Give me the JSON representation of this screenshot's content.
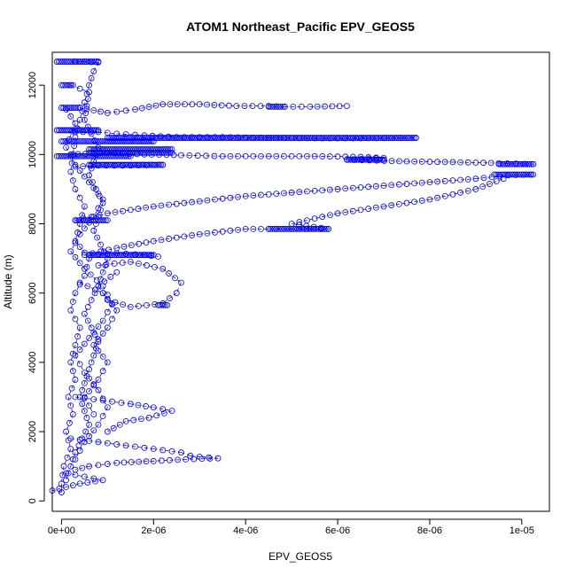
{
  "chart_data": {
    "type": "scatter",
    "title": "ATOM1 Northeast_Pacific EPV_GEOS5",
    "xlabel": "EPV_GEOS5",
    "ylabel": "Altitude (m)",
    "xlim": [
      -2e-07,
      1.06e-05
    ],
    "ylim": [
      -300,
      12950
    ],
    "x_ticks": [
      0,
      2e-06,
      4e-06,
      6e-06,
      8e-06,
      1e-05
    ],
    "x_tick_labels": [
      "0e+00",
      "2e-06",
      "4e-06",
      "6e-06",
      "8e-06",
      "1e-05"
    ],
    "y_ticks": [
      0,
      2000,
      4000,
      6000,
      8000,
      10000,
      12000
    ],
    "y_tick_labels": [
      "0",
      "2000",
      "4000",
      "6000",
      "8000",
      "10000",
      "12000"
    ],
    "marker": "open-circle",
    "line_style": "dashed",
    "color": "#0000ff",
    "series": [
      {
        "points": [
          [
            3e-07,
            12680
          ],
          [
            5e-07,
            12680
          ],
          [
            8e-07,
            12660
          ],
          [
            7e-07,
            12400
          ],
          [
            6e-07,
            12000
          ],
          [
            5e-07,
            11500
          ],
          [
            4e-07,
            11000
          ],
          [
            3e-07,
            10500
          ],
          [
            2.5e-07,
            10000
          ],
          [
            2e-07,
            9500
          ],
          [
            3e-07,
            9000
          ],
          [
            5e-07,
            8500
          ],
          [
            4e-07,
            8000
          ],
          [
            3e-07,
            7500
          ],
          [
            6e-07,
            7000
          ],
          [
            5e-07,
            6500
          ],
          [
            3e-07,
            6000
          ],
          [
            2e-07,
            5500
          ],
          [
            4e-07,
            5000
          ],
          [
            3e-07,
            4500
          ],
          [
            2e-07,
            4000
          ],
          [
            3e-07,
            3500
          ],
          [
            1.5e-07,
            3000
          ],
          [
            2.5e-07,
            2500
          ],
          [
            1e-07,
            2000
          ],
          [
            2e-07,
            1500
          ],
          [
            5e-08,
            1000
          ],
          [
            0.0,
            500
          ],
          [
            0.0,
            250
          ]
        ]
      },
      {
        "points": [
          [
            4e-07,
            11350
          ],
          [
            1e-06,
            11200
          ],
          [
            1.6e-06,
            11300
          ],
          [
            2.2e-06,
            11450
          ],
          [
            3e-06,
            11450
          ],
          [
            3.8e-06,
            11400
          ],
          [
            4.5e-06,
            11400
          ],
          [
            4.85e-06,
            11380
          ],
          [
            5.4e-06,
            11380
          ],
          [
            6.2e-06,
            11400
          ]
        ]
      },
      {
        "points": [
          [
            3e-07,
            10650
          ],
          [
            8e-07,
            10650
          ],
          [
            1.2e-06,
            10600
          ],
          [
            1.8e-06,
            10550
          ],
          [
            2.5e-06,
            10500
          ],
          [
            3.5e-06,
            10500
          ],
          [
            4.5e-06,
            10480
          ],
          [
            5.5e-06,
            10470
          ],
          [
            6.5e-06,
            10470
          ],
          [
            7.7e-06,
            10480
          ]
        ]
      },
      {
        "points": [
          [
            2e-07,
            10000
          ],
          [
            1e-06,
            10050
          ],
          [
            1.8e-06,
            10000
          ],
          [
            2.6e-06,
            9980
          ],
          [
            3.5e-06,
            9950
          ],
          [
            4.5e-06,
            9950
          ],
          [
            5.5e-06,
            9950
          ],
          [
            6.5e-06,
            9930
          ],
          [
            7e-06,
            9900
          ],
          [
            6.2e-06,
            9850
          ],
          [
            7.5e-06,
            9800
          ],
          [
            8.5e-06,
            9780
          ],
          [
            9.5e-06,
            9750
          ],
          [
            1.025e-05,
            9720
          ]
        ]
      },
      {
        "points": [
          [
            3e-07,
            9650
          ],
          [
            8e-07,
            9680
          ],
          [
            1.5e-06,
            9680
          ],
          [
            2.2e-06,
            9700
          ]
        ]
      },
      {
        "points": [
          [
            3e-07,
            8100
          ],
          [
            1e-06,
            8300
          ],
          [
            2e-06,
            8500
          ],
          [
            3e-06,
            8650
          ],
          [
            4e-06,
            8800
          ],
          [
            5e-06,
            8900
          ],
          [
            6e-06,
            9000
          ],
          [
            7e-06,
            9100
          ],
          [
            8e-06,
            9200
          ],
          [
            9e-06,
            9300
          ],
          [
            9.7e-06,
            9400
          ],
          [
            1.02e-05,
            9420
          ]
        ]
      },
      {
        "points": [
          [
            5e-07,
            7100
          ],
          [
            1.2e-06,
            7300
          ],
          [
            2e-06,
            7500
          ],
          [
            3e-06,
            7700
          ],
          [
            4e-06,
            7850
          ],
          [
            5e-06,
            7850
          ],
          [
            5.8e-06,
            7850
          ],
          [
            5e-06,
            8000
          ],
          [
            6e-06,
            8300
          ],
          [
            7e-06,
            8500
          ],
          [
            8e-06,
            8700
          ],
          [
            9e-06,
            9000
          ],
          [
            9.6e-06,
            9300
          ]
        ]
      },
      {
        "points": [
          [
            6e-07,
            7100
          ],
          [
            1.2e-06,
            7150
          ],
          [
            1.8e-06,
            7100
          ],
          [
            2.1e-06,
            7050
          ]
        ]
      },
      {
        "points": [
          [
            8e-07,
            6800
          ],
          [
            1.5e-06,
            6900
          ],
          [
            2.2e-06,
            6700
          ],
          [
            2.6e-06,
            6300
          ],
          [
            2.5e-06,
            6000
          ],
          [
            2.2e-06,
            5700
          ],
          [
            1.5e-06,
            5600
          ],
          [
            1e-06,
            5800
          ],
          [
            8e-07,
            6200
          ],
          [
            1.2e-06,
            6600
          ]
        ]
      },
      {
        "points": [
          [
            4e-07,
            6300
          ],
          [
            9e-07,
            6000
          ],
          [
            1.2e-06,
            5500
          ],
          [
            1e-06,
            5000
          ],
          [
            7e-07,
            4500
          ],
          [
            1e-06,
            4000
          ],
          [
            8e-07,
            3500
          ],
          [
            5e-07,
            3000
          ],
          [
            7e-07,
            2500
          ]
        ]
      },
      {
        "points": [
          [
            3e-07,
            3000
          ],
          [
            9e-07,
            2900
          ],
          [
            1.5e-06,
            2800
          ],
          [
            2e-06,
            2700
          ],
          [
            2.4e-06,
            2600
          ],
          [
            1.9e-06,
            2400
          ],
          [
            1.4e-06,
            2300
          ],
          [
            1e-06,
            2000
          ]
        ]
      },
      {
        "points": [
          [
            2e-07,
            1800
          ],
          [
            8e-07,
            1700
          ],
          [
            1.4e-06,
            1600
          ],
          [
            2e-06,
            1500
          ],
          [
            2.6e-06,
            1400
          ],
          [
            2.8e-06,
            1300
          ],
          [
            3.4e-06,
            1230
          ],
          [
            2.7e-06,
            1200
          ],
          [
            2e-06,
            1150
          ],
          [
            1.2e-06,
            1100
          ],
          [
            6e-07,
            1000
          ],
          [
            3e-07,
            900
          ]
        ]
      },
      {
        "points": [
          [
            1e-07,
            800
          ],
          [
            5e-07,
            700
          ],
          [
            9e-07,
            600
          ],
          [
            4e-07,
            500
          ],
          [
            1e-07,
            400
          ],
          [
            -2e-07,
            300
          ],
          [
            0.0,
            250
          ]
        ]
      },
      {
        "points": [
          [
            2e-07,
            12000
          ],
          [
            6e-07,
            11800
          ],
          [
            5e-07,
            11000
          ],
          [
            8e-07,
            10200
          ],
          [
            6e-07,
            9400
          ],
          [
            9e-07,
            8600
          ],
          [
            7e-07,
            7800
          ],
          [
            1e-06,
            7000
          ],
          [
            8e-07,
            6200
          ],
          [
            5e-07,
            5400
          ],
          [
            8e-07,
            4600
          ],
          [
            6e-07,
            3800
          ],
          [
            4e-07,
            3000
          ],
          [
            6e-07,
            2200
          ],
          [
            3e-07,
            1400
          ],
          [
            1e-07,
            600
          ]
        ]
      },
      {
        "points": [
          [
            1e-07,
            11300
          ],
          [
            3e-07,
            10900
          ],
          [
            1e-07,
            10200
          ],
          [
            3e-07,
            9700
          ],
          [
            6e-07,
            9200
          ],
          [
            9e-07,
            8700
          ],
          [
            7e-07,
            8200
          ],
          [
            4e-07,
            7700
          ],
          [
            2e-07,
            7200
          ],
          [
            5e-07,
            6700
          ],
          [
            9e-07,
            6200
          ],
          [
            1.1e-06,
            5700
          ],
          [
            9e-07,
            5200
          ],
          [
            6e-07,
            4700
          ],
          [
            3e-07,
            4200
          ],
          [
            5e-07,
            3700
          ],
          [
            8e-07,
            3200
          ],
          [
            1e-06,
            2700
          ],
          [
            8e-07,
            2200
          ],
          [
            5e-07,
            1700
          ],
          [
            3e-07,
            1200
          ]
        ]
      }
    ],
    "bands": [
      {
        "y": 12680,
        "x_from": -1e-07,
        "x_to": 8e-07
      },
      {
        "y": 12000,
        "x_from": 0.0,
        "x_to": 2.5e-07
      },
      {
        "y": 11350,
        "x_from": 0.0,
        "x_to": 4e-07
      },
      {
        "y": 10700,
        "x_from": -1e-07,
        "x_to": 8e-07
      },
      {
        "y": 10480,
        "x_from": 1e-06,
        "x_to": 7.7e-06
      },
      {
        "y": 10380,
        "x_from": 0.0,
        "x_to": 2e-06
      },
      {
        "y": 10150,
        "x_from": 6e-07,
        "x_to": 2.4e-06
      },
      {
        "y": 10050,
        "x_from": 6e-07,
        "x_to": 2.4e-06
      },
      {
        "y": 9950,
        "x_from": -1e-07,
        "x_to": 1.5e-06
      },
      {
        "y": 9850,
        "x_from": 6.2e-06,
        "x_to": 7e-06
      },
      {
        "y": 9700,
        "x_from": 6e-07,
        "x_to": 2.2e-06
      },
      {
        "y": 9420,
        "x_from": 9.4e-06,
        "x_to": 1.025e-05
      },
      {
        "y": 9720,
        "x_from": 9.5e-06,
        "x_to": 1.025e-05
      },
      {
        "y": 8100,
        "x_from": 3e-07,
        "x_to": 1e-06
      },
      {
        "y": 7100,
        "x_from": 6e-07,
        "x_to": 2e-06
      },
      {
        "y": 5650,
        "x_from": 2.1e-06,
        "x_to": 2.3e-06
      },
      {
        "y": 11380,
        "x_from": 4.5e-06,
        "x_to": 4.85e-06
      },
      {
        "y": 7850,
        "x_from": 4.5e-06,
        "x_to": 5.8e-06
      }
    ]
  }
}
